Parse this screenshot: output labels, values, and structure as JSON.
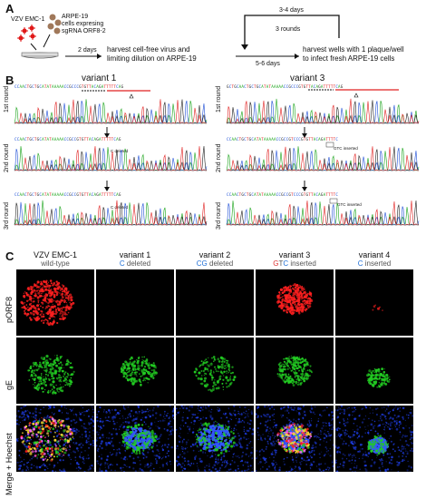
{
  "panels": {
    "A": "A",
    "B": "B",
    "C": "C"
  },
  "panelA": {
    "virus_label": "VZV EMC-1",
    "cells_label": [
      "ARPE-19",
      "cells expresing",
      "sgRNA ORF8-2"
    ],
    "arrow1_label": "2 days",
    "step1": [
      "harvest cell-free virus and",
      "limiting dilution on ARPE-19"
    ],
    "arrow2_label": "5-6 days",
    "step2": [
      "harvest wells with 1 plaque/well",
      "to infect fresh ARPE-19 cells"
    ],
    "loop_top": "3-4 days",
    "loop_mid": "3 rounds"
  },
  "panelB": {
    "variants": [
      {
        "title": "variant 1",
        "rounds": [
          {
            "label": "1st round",
            "seq": "CCAACTGCTGCATATAAAAACCGCCCGTGTTACAGATTTTTCAG",
            "note": ""
          },
          {
            "label": "2nd round",
            "seq": "CCAACTGCTGCATATAAAAACCGCCGTGTTACAGATTTTTCAG",
            "note": "C deleted"
          },
          {
            "label": "3rd round",
            "seq": "CCAACTGCTGCATATAAAAACCGCCGTGTTACAGATTTTTCAG",
            "note": "C deleted"
          }
        ]
      },
      {
        "title": "variant 3",
        "rounds": [
          {
            "label": "1st round",
            "seq": "GCTGCAACTGCTGCATATAAAAACCGCCCGTGTTACAGATTTTTCAG",
            "note": ""
          },
          {
            "label": "2nd round",
            "seq": "CCAACTGCTGCATATAAAAACCGCCGTCCCGTGTTACAGATTTTC",
            "note": "GTC inserted"
          },
          {
            "label": "3rd round",
            "seq": "CCAACTGCTGCATATAAAAACCGCCGTCCCGTGTTACAGATTTTC",
            "note": "GTC inserted"
          }
        ]
      }
    ]
  },
  "panelC": {
    "columns": [
      {
        "title": "VZV EMC-1",
        "sub_parts": [
          {
            "t": "wild-type",
            "c": "#555555"
          }
        ]
      },
      {
        "title": "variant 1",
        "sub_parts": [
          {
            "t": "C",
            "c": "#1f6fd6"
          },
          {
            "t": " deleted",
            "c": "#555555"
          }
        ]
      },
      {
        "title": "variant 2",
        "sub_parts": [
          {
            "t": "CG",
            "c": "#1f6fd6"
          },
          {
            "t": " deleted",
            "c": "#555555"
          }
        ]
      },
      {
        "title": "variant 3",
        "sub_parts": [
          {
            "t": "G",
            "c": "#d33"
          },
          {
            "t": "T",
            "c": "#555555"
          },
          {
            "t": "C",
            "c": "#1f6fd6"
          },
          {
            "t": " inserted",
            "c": "#555555"
          }
        ]
      },
      {
        "title": "variant 4",
        "sub_parts": [
          {
            "t": "C",
            "c": "#1f6fd6"
          },
          {
            "t": " inserted",
            "c": "#555555"
          }
        ]
      }
    ],
    "rows": [
      "pORF8",
      "gE",
      "Merge + Hoechst"
    ]
  },
  "colors": {
    "A": "#1aa31a",
    "C": "#1f4fd6",
    "G": "#222222",
    "T": "#e02020",
    "red": "#ff2020",
    "green": "#22cc22",
    "blue": "#2244ff"
  }
}
